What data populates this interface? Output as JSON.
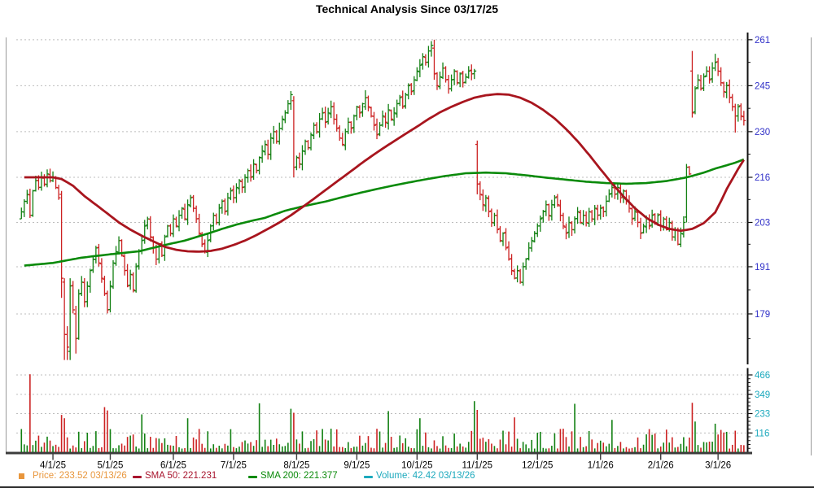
{
  "title": "Technical Analysis Since 03/17/25",
  "legend": {
    "price": "Price: 233.52  03/13/26",
    "sma50": "SMA 50: 221.231",
    "sma200": "SMA 200: 221.377",
    "volume": "Volume: 42.42  03/13/26"
  },
  "colors": {
    "bar_up": "#128012",
    "bar_down": "#cc2222",
    "sma50_line": "#a8151e",
    "sma200_line": "#0a8a0a",
    "price_label": "#e8963c",
    "sma50_label": "#a8152e",
    "sma200_label": "#0a8a0a",
    "volume_label": "#1ca9bd",
    "price_axis_text": "#3030c8",
    "volume_axis_text": "#1ca9bd",
    "grid": "#bdbdbd",
    "axis_line": "#111111",
    "xaxis_bar": "#3c3c3c",
    "frame": "#9a9a9a",
    "x_label_text": "#000000"
  },
  "chart_data": {
    "type": "ohlc-with-volume",
    "title": "Technical Analysis Since 03/17/25",
    "price_scale": "log",
    "current_price": 233.52,
    "current_date": "03/13/26",
    "sma50_value": 221.231,
    "sma200_value": 221.377,
    "current_volume": 42.42,
    "price_axis_ticks": [
      261,
      245,
      230,
      216,
      203,
      191,
      179
    ],
    "price_axis_minor_ticks": [
      253,
      237.5,
      223,
      209.5,
      197,
      185,
      173
    ],
    "volume_axis_ticks": [
      466,
      349,
      233,
      116
    ],
    "x_tick_labels": [
      "4/1/25",
      "5/1/25",
      "6/1/25",
      "7/1/25",
      "8/1/25",
      "9/1/25",
      "10/1/25",
      "11/1/25",
      "12/1/25",
      "1/1/26",
      "2/1/26",
      "3/1/26"
    ],
    "x_tick_day_index": [
      11,
      31,
      53,
      74,
      96,
      117,
      138,
      159,
      180,
      202,
      223,
      243
    ],
    "closes": [
      206,
      209,
      211,
      205,
      212,
      215,
      213,
      216,
      214,
      217,
      215,
      216,
      213,
      210,
      188,
      174,
      171,
      186,
      180,
      173,
      184,
      187,
      182,
      186,
      190,
      193,
      196,
      192,
      188,
      184,
      180,
      186,
      192,
      195,
      198,
      194,
      190,
      186,
      189,
      185,
      191,
      195,
      198,
      202,
      204,
      199,
      196,
      193,
      197,
      194,
      199,
      202,
      200,
      204,
      202,
      205,
      207,
      204,
      208,
      210,
      207,
      204,
      200,
      197,
      195,
      198,
      202,
      205,
      203,
      207,
      209,
      206,
      210,
      212,
      210,
      213,
      215,
      213,
      216,
      218,
      216,
      220,
      218,
      222,
      224,
      226,
      223,
      228,
      230,
      227,
      231,
      234,
      236,
      239,
      242,
      219,
      222,
      220,
      224,
      227,
      225,
      229,
      232,
      230,
      234,
      236,
      233,
      236,
      238,
      234,
      231,
      228,
      226,
      230,
      233,
      231,
      235,
      238,
      236,
      239,
      241,
      238,
      235,
      232,
      229,
      232,
      235,
      233,
      237,
      234,
      236,
      239,
      241,
      238,
      242,
      245,
      243,
      247,
      250,
      252,
      255,
      253,
      257,
      259,
      249,
      245,
      248,
      251,
      247,
      244,
      247,
      250,
      246,
      249,
      246,
      248,
      250,
      249,
      250,
      214,
      211,
      208,
      210,
      206,
      203,
      205,
      201,
      198,
      200,
      196,
      193,
      190,
      188,
      190,
      187,
      191,
      193,
      196,
      198,
      200,
      202,
      204,
      206,
      208,
      205,
      208,
      210,
      208,
      205,
      202,
      200,
      203,
      201,
      204,
      206,
      203,
      205,
      203,
      206,
      204,
      207,
      205,
      207,
      206,
      209,
      211,
      213,
      211,
      213,
      210,
      212,
      209,
      207,
      204,
      206,
      203,
      200,
      202,
      204,
      202,
      205,
      203,
      205,
      202,
      204,
      201,
      203,
      199,
      201,
      197,
      200,
      203,
      219,
      217,
      236,
      244,
      247,
      244,
      248,
      250,
      247,
      251,
      253,
      250,
      246,
      243,
      245,
      241,
      238,
      235,
      238,
      235,
      233.52
    ],
    "open_overrides": {
      "0": 204,
      "14": 211,
      "15": 187,
      "16": 174,
      "17": 170,
      "19": 179,
      "94": 239,
      "95": 240,
      "120": 238,
      "143": 257,
      "144": 258,
      "159": 226,
      "232": 204.5,
      "234": 250,
      "242": 251,
      "249": 238
    },
    "high_overrides": {
      "14": 212,
      "15": 188,
      "16": 176,
      "17": 188,
      "19": 181,
      "94": 243.2,
      "95": 241.5,
      "120": 243.5,
      "143": 260.5,
      "144": 261,
      "159": 227.2,
      "232": 220,
      "234": 257,
      "242": 256,
      "249": 239
    },
    "low_overrides": {
      "14": 183,
      "15": 168,
      "16": 168,
      "17": 168,
      "19": 169.5,
      "94": 237,
      "95": 216,
      "120": 237,
      "143": 255,
      "144": 247,
      "159": 211,
      "232": 203,
      "234": 234.5,
      "242": 250,
      "249": 229.7
    },
    "sma50_keyframes": [
      [
        1,
        216
      ],
      [
        11,
        216
      ],
      [
        14,
        215.5
      ],
      [
        18,
        213.5
      ],
      [
        22,
        210.5
      ],
      [
        26,
        208
      ],
      [
        30,
        205.5
      ],
      [
        34,
        203
      ],
      [
        38,
        201
      ],
      [
        42,
        199.3
      ],
      [
        46,
        197.8
      ],
      [
        50,
        196.3
      ],
      [
        54,
        195.5
      ],
      [
        58,
        195.1
      ],
      [
        62,
        195
      ],
      [
        66,
        195.2
      ],
      [
        70,
        195.8
      ],
      [
        74,
        196.8
      ],
      [
        78,
        198
      ],
      [
        82,
        199.5
      ],
      [
        86,
        201.2
      ],
      [
        90,
        203
      ],
      [
        94,
        205
      ],
      [
        98,
        207.3
      ],
      [
        102,
        209.7
      ],
      [
        106,
        212.2
      ],
      [
        110,
        214.7
      ],
      [
        114,
        217.2
      ],
      [
        118,
        219.8
      ],
      [
        122,
        222.3
      ],
      [
        126,
        224.7
      ],
      [
        130,
        227
      ],
      [
        134,
        229.3
      ],
      [
        138,
        231.6
      ],
      [
        142,
        234
      ],
      [
        146,
        236.2
      ],
      [
        150,
        238
      ],
      [
        154,
        239.6
      ],
      [
        158,
        241
      ],
      [
        162,
        241.8
      ],
      [
        166,
        242.2
      ],
      [
        170,
        242
      ],
      [
        174,
        241
      ],
      [
        178,
        239.3
      ],
      [
        182,
        237
      ],
      [
        186,
        234.2
      ],
      [
        190,
        230.8
      ],
      [
        194,
        227
      ],
      [
        198,
        222.8
      ],
      [
        202,
        218.4
      ],
      [
        206,
        214.2
      ],
      [
        210,
        210.4
      ],
      [
        214,
        207
      ],
      [
        218,
        204.3
      ],
      [
        222,
        202.4
      ],
      [
        226,
        201.2
      ],
      [
        230,
        200.7
      ],
      [
        234,
        201.2
      ],
      [
        238,
        202.8
      ],
      [
        242,
        205.8
      ],
      [
        244,
        209
      ],
      [
        246,
        212.5
      ],
      [
        248,
        215.5
      ],
      [
        250,
        218.5
      ],
      [
        252,
        221.231
      ]
    ],
    "sma200_keyframes": [
      [
        1,
        191.3
      ],
      [
        11,
        192
      ],
      [
        21,
        193.4
      ],
      [
        31,
        194.3
      ],
      [
        41,
        195.1
      ],
      [
        49,
        196.6
      ],
      [
        57,
        198
      ],
      [
        65,
        199.9
      ],
      [
        70,
        201.2
      ],
      [
        75,
        202.4
      ],
      [
        80,
        203.4
      ],
      [
        85,
        204.3
      ],
      [
        92,
        206.3
      ],
      [
        99,
        207.7
      ],
      [
        106,
        208.9
      ],
      [
        113,
        210.4
      ],
      [
        120,
        211.8
      ],
      [
        127,
        213.1
      ],
      [
        134,
        214.3
      ],
      [
        141,
        215.4
      ],
      [
        148,
        216.4
      ],
      [
        155,
        217.2
      ],
      [
        162,
        217.4
      ],
      [
        169,
        217.2
      ],
      [
        176,
        216.6
      ],
      [
        183,
        215.9
      ],
      [
        190,
        215.3
      ],
      [
        197,
        214.7
      ],
      [
        204,
        214.3
      ],
      [
        211,
        214.1
      ],
      [
        218,
        214.3
      ],
      [
        225,
        214.9
      ],
      [
        231,
        215.8
      ],
      [
        234,
        216.4
      ],
      [
        238,
        217.4
      ],
      [
        242,
        218.6
      ],
      [
        246,
        219.6
      ],
      [
        249,
        220.4
      ],
      [
        252,
        221.377
      ]
    ],
    "volume_spikes": {
      "3": 470,
      "14": 225,
      "15": 205,
      "29": 272,
      "30": 252,
      "42": 228,
      "58": 205,
      "83": 295,
      "94": 262,
      "95": 238,
      "128": 248,
      "139": 205,
      "158": 308,
      "159": 255,
      "172": 210,
      "193": 292,
      "206": 195,
      "234": 298,
      "235": 185,
      "242": 172,
      "252": 42.42
    },
    "volume_seed": 123456789
  }
}
